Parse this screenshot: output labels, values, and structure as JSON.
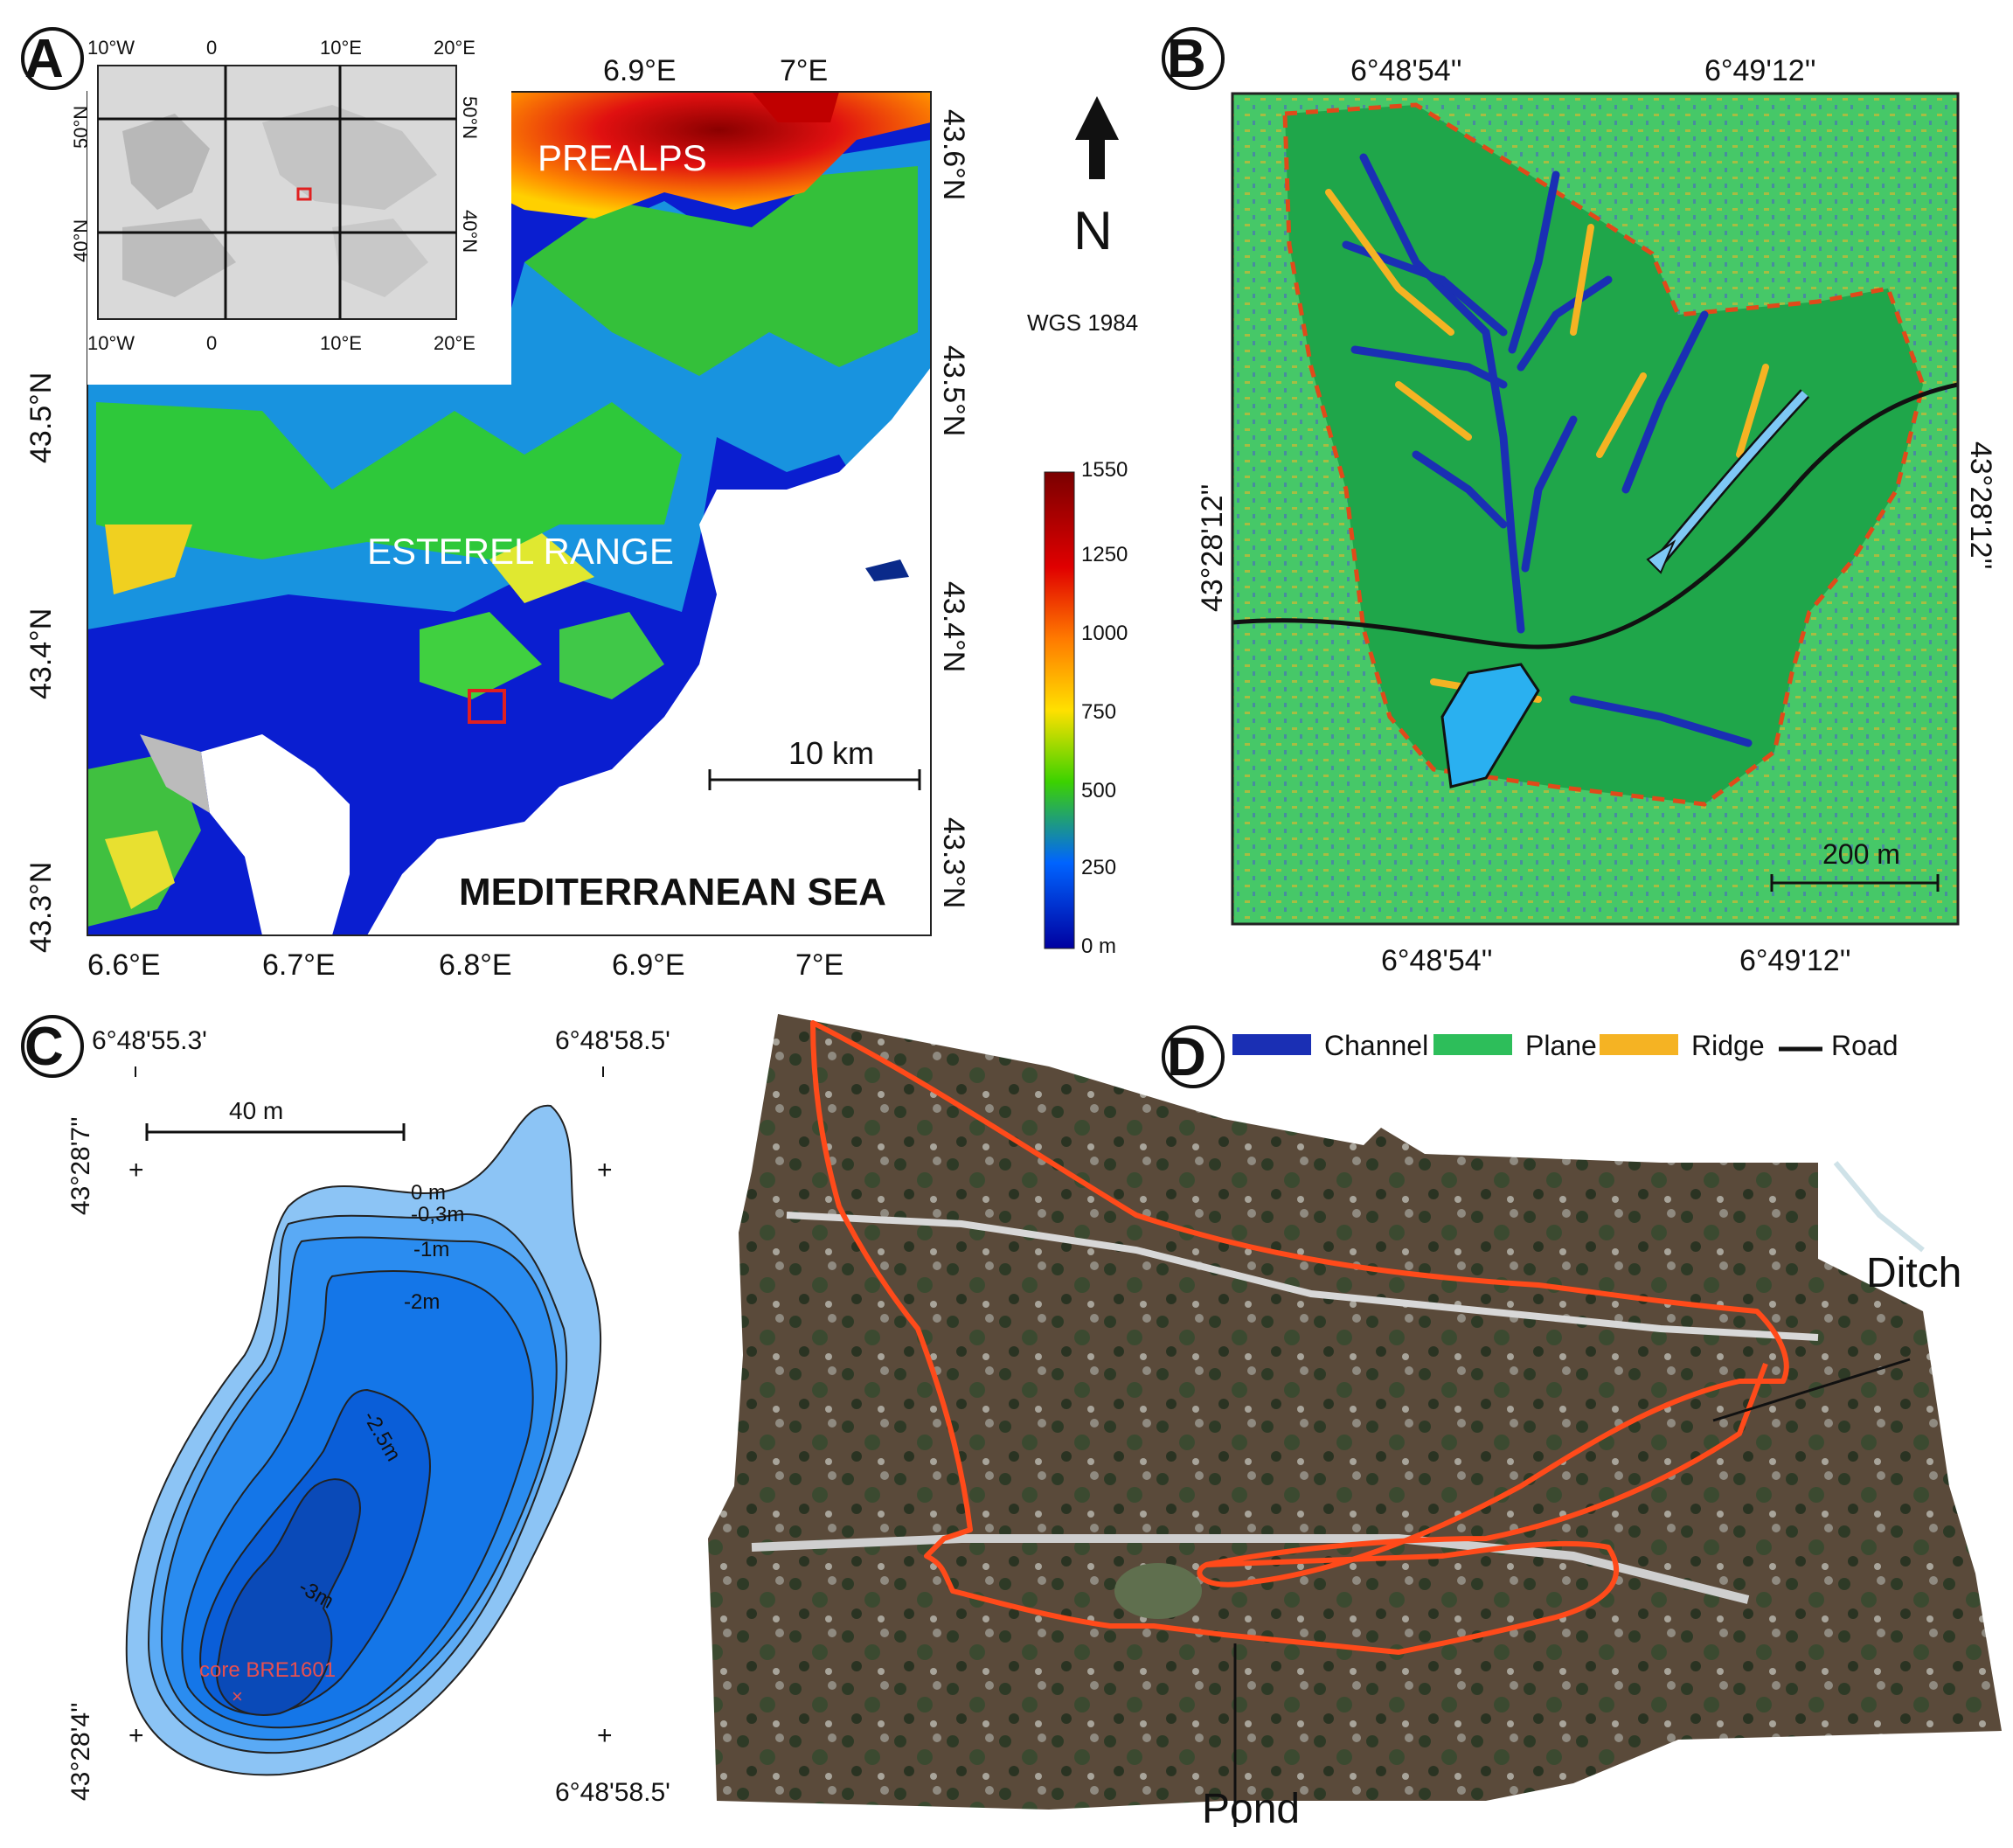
{
  "panel_a": {
    "letter": "A",
    "inset": {
      "top_ticks": [
        "10°W",
        "0",
        "10°E",
        "20°E"
      ],
      "bottom_ticks": [
        "10°W",
        "0",
        "10°E",
        "20°E"
      ],
      "left_ticks": [
        "50°N",
        "40°N"
      ],
      "right_ticks": [
        "50°N",
        "40°N"
      ]
    },
    "top_ticks": [
      "6.9°E",
      "7°E"
    ],
    "bottom_ticks": [
      "6.6°E",
      "6.7°E",
      "6.8°E",
      "6.9°E",
      "7°E"
    ],
    "left_ticks": [
      "43.5°N",
      "43.4°N",
      "43.3°N"
    ],
    "right_ticks": [
      "43.6°N",
      "43.5°N",
      "43.4°N",
      "43.3°N"
    ],
    "labels": {
      "prealps": "PREALPS",
      "esterel": "ESTEREL RANGE",
      "sea": "MEDITERRANEAN SEA"
    },
    "scale_bar": "10 km",
    "north": "N",
    "datum": "WGS 1984",
    "colorbar": {
      "ticks": [
        "1550",
        "1250",
        "1000",
        "750",
        "500",
        "250",
        "0 m"
      ],
      "colors": [
        "#7a0000",
        "#e00000",
        "#ff7a00",
        "#ffe000",
        "#3cd200",
        "#0064ff",
        "#0000a0"
      ]
    }
  },
  "panel_b": {
    "letter": "B",
    "top_ticks": [
      "6°48'54''",
      "6°49'12''"
    ],
    "bottom_ticks": [
      "6°48'54''",
      "6°49'12''"
    ],
    "left_tick": "43°28'12''",
    "right_tick": "43°28'12''",
    "scale_bar": "200 m",
    "legend": [
      {
        "label": "Channel",
        "color": "#1a2fb4"
      },
      {
        "label": "Plane",
        "color": "#2dbe5a"
      },
      {
        "label": "Ridge",
        "color": "#f5b323"
      },
      {
        "label": "Road",
        "color": "#111111"
      }
    ]
  },
  "panel_c": {
    "letter": "C",
    "top_ticks": [
      "6°48'55.3'",
      "6°48'58.5'"
    ],
    "bottom_tick": "6°48'58.5'",
    "left_ticks": [
      "43°28'7''",
      "43°28'4''"
    ],
    "scale_bar": "40 m",
    "contours": [
      "0 m",
      "-0,3m",
      "-1m",
      "-2m",
      "-2.5m",
      "-3m"
    ],
    "core": "core BRE1601",
    "colors": [
      "#8cc4f5",
      "#5aaaf5",
      "#2a8cf0",
      "#1476e8",
      "#0a5ed8",
      "#0a4ab8"
    ]
  },
  "panel_d": {
    "letter": "D",
    "labels": {
      "ditch": "Ditch",
      "pond": "Pond"
    }
  }
}
